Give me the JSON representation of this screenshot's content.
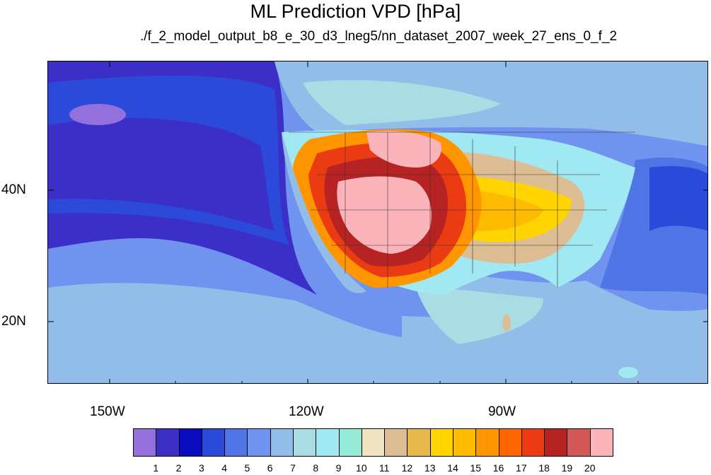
{
  "title": "ML Prediction VPD [hPa]",
  "subtitle": "./f_2_model_output_b8_e_30_d3_lneg5/nn_dataset_2007_week_27_ens_0_f_2",
  "axes": {
    "lon_labels": [
      "150W",
      "120W",
      "90W"
    ],
    "lat_labels": [
      "40N",
      "20N"
    ],
    "lon_range": [
      -160,
      -62
    ],
    "lat_range": [
      10,
      59
    ]
  },
  "colorbar": {
    "labels": [
      "1",
      "2",
      "3",
      "4",
      "5",
      "6",
      "7",
      "8",
      "9",
      "10",
      "11",
      "12",
      "13",
      "14",
      "15",
      "16",
      "17",
      "18",
      "19",
      "20"
    ],
    "colors": [
      "#9370db",
      "#3c2fc8",
      "#0b0bbf",
      "#2b4ad9",
      "#4e74e6",
      "#6f93ee",
      "#92bde8",
      "#a9dce3",
      "#a0e8f2",
      "#95ebd8",
      "#f0e4c2",
      "#ddbe94",
      "#e6b84e",
      "#ffd400",
      "#ffbb00",
      "#ff9600",
      "#ff6400",
      "#ea3b12",
      "#b72222",
      "#d45858",
      "#fbb4b9"
    ]
  },
  "chart_data": {
    "type": "heatmap",
    "title": "ML Prediction VPD [hPa]",
    "subtitle": "./f_2_model_output_b8_e_30_d3_lneg5/nn_dataset_2007_week_27_ens_0_f_2",
    "x_ticks": [
      "150W",
      "120W",
      "90W"
    ],
    "y_ticks": [
      "40N",
      "20N"
    ],
    "colorbar_levels": [
      1,
      2,
      3,
      4,
      5,
      6,
      7,
      8,
      9,
      10,
      11,
      12,
      13,
      14,
      15,
      16,
      17,
      18,
      19,
      20
    ],
    "grid": false,
    "legend": "bottom"
  }
}
